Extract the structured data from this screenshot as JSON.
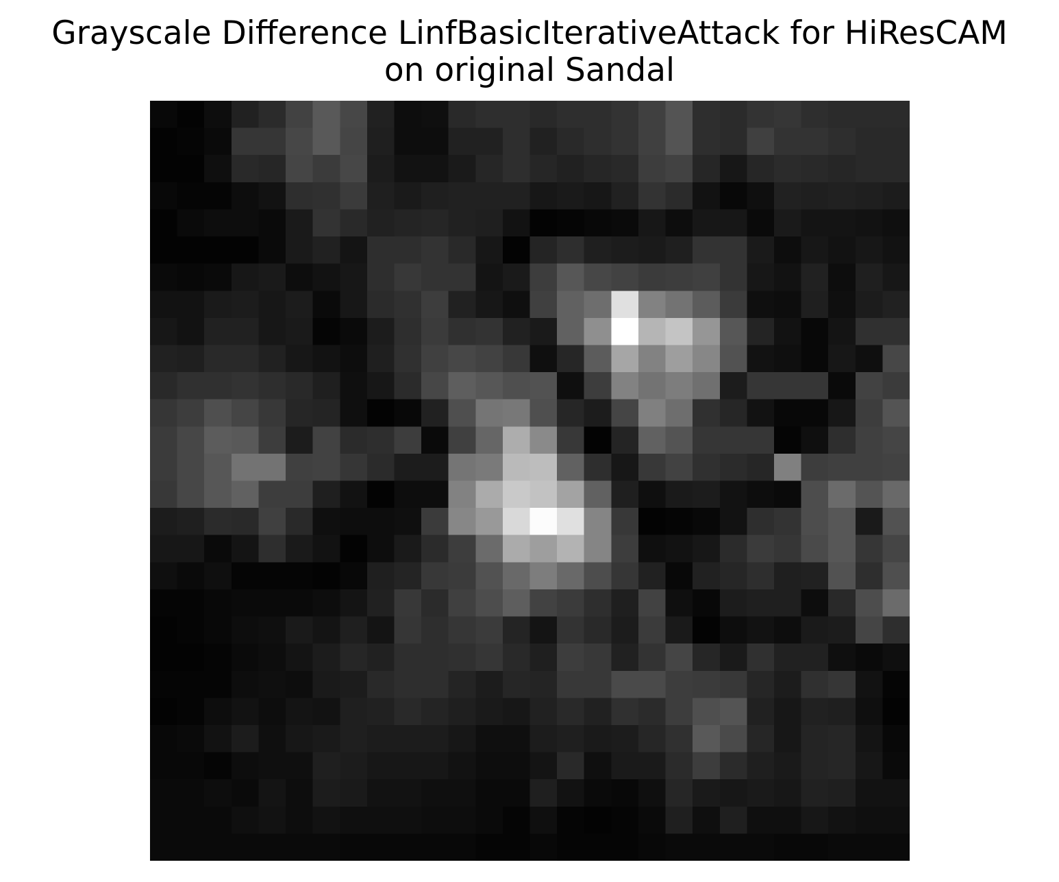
{
  "chart_data": {
    "type": "heatmap",
    "title_lines": [
      "Grayscale Difference LinfBasicIterativeAttack for HiResCAM",
      "on original Sandal"
    ],
    "colormap": "gray",
    "axes_visible": false,
    "value_range": [
      0,
      1
    ],
    "rows": 28,
    "cols": 28,
    "values": [
      [
        0.03,
        0.01,
        0.05,
        0.13,
        0.17,
        0.26,
        0.35,
        0.28,
        0.13,
        0.05,
        0.06,
        0.16,
        0.18,
        0.18,
        0.16,
        0.18,
        0.18,
        0.2,
        0.25,
        0.33,
        0.18,
        0.17,
        0.2,
        0.21,
        0.18,
        0.17,
        0.17,
        0.17
      ],
      [
        0.01,
        0.02,
        0.04,
        0.21,
        0.21,
        0.28,
        0.35,
        0.27,
        0.12,
        0.05,
        0.05,
        0.13,
        0.13,
        0.18,
        0.13,
        0.16,
        0.18,
        0.2,
        0.25,
        0.33,
        0.18,
        0.17,
        0.25,
        0.2,
        0.2,
        0.18,
        0.16,
        0.16
      ],
      [
        0.01,
        0.01,
        0.06,
        0.16,
        0.15,
        0.27,
        0.23,
        0.28,
        0.11,
        0.07,
        0.07,
        0.1,
        0.15,
        0.18,
        0.15,
        0.13,
        0.15,
        0.16,
        0.24,
        0.26,
        0.15,
        0.09,
        0.15,
        0.17,
        0.16,
        0.15,
        0.16,
        0.16
      ],
      [
        0.03,
        0.02,
        0.02,
        0.05,
        0.07,
        0.18,
        0.19,
        0.23,
        0.12,
        0.1,
        0.12,
        0.13,
        0.13,
        0.13,
        0.09,
        0.1,
        0.09,
        0.13,
        0.2,
        0.17,
        0.07,
        0.03,
        0.06,
        0.13,
        0.12,
        0.13,
        0.12,
        0.11
      ],
      [
        0.01,
        0.04,
        0.05,
        0.05,
        0.04,
        0.1,
        0.2,
        0.16,
        0.13,
        0.14,
        0.15,
        0.13,
        0.12,
        0.07,
        0.01,
        0.02,
        0.03,
        0.04,
        0.09,
        0.05,
        0.09,
        0.09,
        0.04,
        0.1,
        0.08,
        0.08,
        0.07,
        0.06
      ],
      [
        0.01,
        0.01,
        0.01,
        0.01,
        0.04,
        0.1,
        0.13,
        0.08,
        0.18,
        0.18,
        0.2,
        0.16,
        0.09,
        0.01,
        0.14,
        0.18,
        0.12,
        0.11,
        0.1,
        0.12,
        0.2,
        0.2,
        0.1,
        0.05,
        0.09,
        0.07,
        0.09,
        0.07
      ],
      [
        0.04,
        0.03,
        0.04,
        0.09,
        0.1,
        0.05,
        0.07,
        0.09,
        0.18,
        0.22,
        0.2,
        0.2,
        0.08,
        0.1,
        0.24,
        0.34,
        0.28,
        0.26,
        0.23,
        0.24,
        0.25,
        0.2,
        0.09,
        0.07,
        0.13,
        0.05,
        0.12,
        0.09
      ],
      [
        0.07,
        0.07,
        0.1,
        0.11,
        0.09,
        0.11,
        0.04,
        0.09,
        0.17,
        0.19,
        0.24,
        0.13,
        0.09,
        0.06,
        0.25,
        0.38,
        0.43,
        0.88,
        0.51,
        0.45,
        0.36,
        0.23,
        0.06,
        0.05,
        0.12,
        0.06,
        0.11,
        0.13
      ],
      [
        0.09,
        0.07,
        0.13,
        0.13,
        0.09,
        0.1,
        0.02,
        0.04,
        0.11,
        0.18,
        0.23,
        0.19,
        0.2,
        0.13,
        0.1,
        0.38,
        0.56,
        1.0,
        0.71,
        0.77,
        0.59,
        0.34,
        0.14,
        0.07,
        0.03,
        0.08,
        0.19,
        0.19
      ],
      [
        0.13,
        0.12,
        0.16,
        0.16,
        0.13,
        0.09,
        0.07,
        0.05,
        0.12,
        0.19,
        0.25,
        0.28,
        0.26,
        0.22,
        0.06,
        0.15,
        0.36,
        0.65,
        0.51,
        0.62,
        0.53,
        0.32,
        0.07,
        0.06,
        0.03,
        0.09,
        0.06,
        0.28
      ],
      [
        0.16,
        0.19,
        0.19,
        0.2,
        0.18,
        0.16,
        0.12,
        0.06,
        0.09,
        0.17,
        0.28,
        0.37,
        0.34,
        0.31,
        0.32,
        0.06,
        0.24,
        0.51,
        0.45,
        0.49,
        0.44,
        0.11,
        0.21,
        0.21,
        0.21,
        0.04,
        0.26,
        0.23
      ],
      [
        0.21,
        0.24,
        0.31,
        0.27,
        0.22,
        0.15,
        0.14,
        0.06,
        0.01,
        0.03,
        0.13,
        0.31,
        0.46,
        0.47,
        0.31,
        0.15,
        0.11,
        0.27,
        0.5,
        0.43,
        0.19,
        0.15,
        0.07,
        0.03,
        0.03,
        0.09,
        0.24,
        0.33
      ],
      [
        0.23,
        0.28,
        0.36,
        0.35,
        0.24,
        0.11,
        0.26,
        0.17,
        0.18,
        0.24,
        0.04,
        0.25,
        0.4,
        0.68,
        0.54,
        0.22,
        0.01,
        0.14,
        0.38,
        0.33,
        0.21,
        0.21,
        0.21,
        0.02,
        0.06,
        0.18,
        0.25,
        0.27
      ],
      [
        0.23,
        0.28,
        0.34,
        0.45,
        0.45,
        0.25,
        0.26,
        0.21,
        0.17,
        0.11,
        0.11,
        0.46,
        0.48,
        0.73,
        0.74,
        0.38,
        0.18,
        0.09,
        0.22,
        0.26,
        0.19,
        0.17,
        0.15,
        0.5,
        0.24,
        0.25,
        0.25,
        0.26
      ],
      [
        0.22,
        0.28,
        0.34,
        0.38,
        0.24,
        0.24,
        0.12,
        0.07,
        0.01,
        0.05,
        0.05,
        0.51,
        0.67,
        0.79,
        0.76,
        0.64,
        0.38,
        0.12,
        0.06,
        0.1,
        0.11,
        0.07,
        0.05,
        0.04,
        0.3,
        0.42,
        0.33,
        0.41
      ],
      [
        0.11,
        0.12,
        0.17,
        0.16,
        0.25,
        0.16,
        0.06,
        0.05,
        0.05,
        0.06,
        0.23,
        0.53,
        0.6,
        0.85,
        0.99,
        0.88,
        0.52,
        0.22,
        0.01,
        0.02,
        0.03,
        0.07,
        0.18,
        0.2,
        0.3,
        0.34,
        0.1,
        0.32
      ],
      [
        0.09,
        0.09,
        0.04,
        0.08,
        0.18,
        0.1,
        0.07,
        0.01,
        0.05,
        0.1,
        0.17,
        0.24,
        0.42,
        0.67,
        0.62,
        0.7,
        0.52,
        0.24,
        0.06,
        0.07,
        0.09,
        0.17,
        0.23,
        0.21,
        0.29,
        0.34,
        0.21,
        0.27
      ],
      [
        0.06,
        0.04,
        0.06,
        0.02,
        0.02,
        0.02,
        0.01,
        0.03,
        0.12,
        0.14,
        0.22,
        0.23,
        0.32,
        0.41,
        0.49,
        0.41,
        0.3,
        0.21,
        0.13,
        0.03,
        0.13,
        0.15,
        0.18,
        0.12,
        0.13,
        0.32,
        0.18,
        0.31
      ],
      [
        0.02,
        0.02,
        0.03,
        0.04,
        0.04,
        0.04,
        0.05,
        0.08,
        0.13,
        0.22,
        0.17,
        0.25,
        0.3,
        0.37,
        0.26,
        0.23,
        0.18,
        0.12,
        0.26,
        0.06,
        0.03,
        0.11,
        0.12,
        0.12,
        0.05,
        0.16,
        0.3,
        0.42
      ],
      [
        0.01,
        0.02,
        0.03,
        0.05,
        0.06,
        0.1,
        0.08,
        0.12,
        0.08,
        0.21,
        0.18,
        0.21,
        0.23,
        0.14,
        0.08,
        0.2,
        0.16,
        0.11,
        0.23,
        0.1,
        0.01,
        0.05,
        0.07,
        0.05,
        0.1,
        0.11,
        0.27,
        0.18
      ],
      [
        0.01,
        0.01,
        0.02,
        0.04,
        0.05,
        0.08,
        0.11,
        0.15,
        0.13,
        0.18,
        0.18,
        0.19,
        0.21,
        0.16,
        0.12,
        0.24,
        0.22,
        0.13,
        0.2,
        0.27,
        0.15,
        0.1,
        0.19,
        0.13,
        0.13,
        0.06,
        0.04,
        0.06
      ],
      [
        0.02,
        0.02,
        0.02,
        0.05,
        0.06,
        0.05,
        0.1,
        0.11,
        0.16,
        0.18,
        0.18,
        0.14,
        0.11,
        0.15,
        0.14,
        0.22,
        0.22,
        0.29,
        0.29,
        0.24,
        0.23,
        0.22,
        0.15,
        0.11,
        0.19,
        0.21,
        0.07,
        0.02
      ],
      [
        0.01,
        0.02,
        0.05,
        0.07,
        0.05,
        0.08,
        0.07,
        0.12,
        0.13,
        0.16,
        0.14,
        0.12,
        0.1,
        0.09,
        0.13,
        0.16,
        0.13,
        0.19,
        0.17,
        0.24,
        0.31,
        0.33,
        0.13,
        0.09,
        0.13,
        0.12,
        0.06,
        0.01
      ],
      [
        0.03,
        0.04,
        0.07,
        0.11,
        0.06,
        0.09,
        0.1,
        0.12,
        0.11,
        0.11,
        0.11,
        0.09,
        0.06,
        0.06,
        0.11,
        0.12,
        0.1,
        0.11,
        0.15,
        0.19,
        0.35,
        0.29,
        0.15,
        0.09,
        0.14,
        0.15,
        0.08,
        0.03
      ],
      [
        0.03,
        0.03,
        0.02,
        0.05,
        0.06,
        0.06,
        0.12,
        0.11,
        0.09,
        0.09,
        0.09,
        0.07,
        0.05,
        0.05,
        0.08,
        0.16,
        0.06,
        0.1,
        0.1,
        0.17,
        0.24,
        0.17,
        0.12,
        0.1,
        0.14,
        0.15,
        0.09,
        0.04
      ],
      [
        0.04,
        0.04,
        0.05,
        0.04,
        0.08,
        0.05,
        0.11,
        0.1,
        0.07,
        0.07,
        0.06,
        0.06,
        0.04,
        0.04,
        0.12,
        0.07,
        0.04,
        0.03,
        0.06,
        0.15,
        0.1,
        0.09,
        0.1,
        0.09,
        0.13,
        0.12,
        0.07,
        0.07
      ],
      [
        0.04,
        0.04,
        0.04,
        0.06,
        0.07,
        0.05,
        0.07,
        0.06,
        0.06,
        0.06,
        0.05,
        0.05,
        0.04,
        0.02,
        0.06,
        0.02,
        0.01,
        0.02,
        0.04,
        0.12,
        0.06,
        0.12,
        0.06,
        0.06,
        0.09,
        0.07,
        0.06,
        0.06
      ],
      [
        0.04,
        0.04,
        0.04,
        0.04,
        0.04,
        0.04,
        0.04,
        0.03,
        0.03,
        0.03,
        0.03,
        0.03,
        0.02,
        0.02,
        0.03,
        0.02,
        0.02,
        0.02,
        0.03,
        0.04,
        0.04,
        0.04,
        0.04,
        0.03,
        0.03,
        0.04,
        0.04,
        0.04
      ]
    ]
  }
}
